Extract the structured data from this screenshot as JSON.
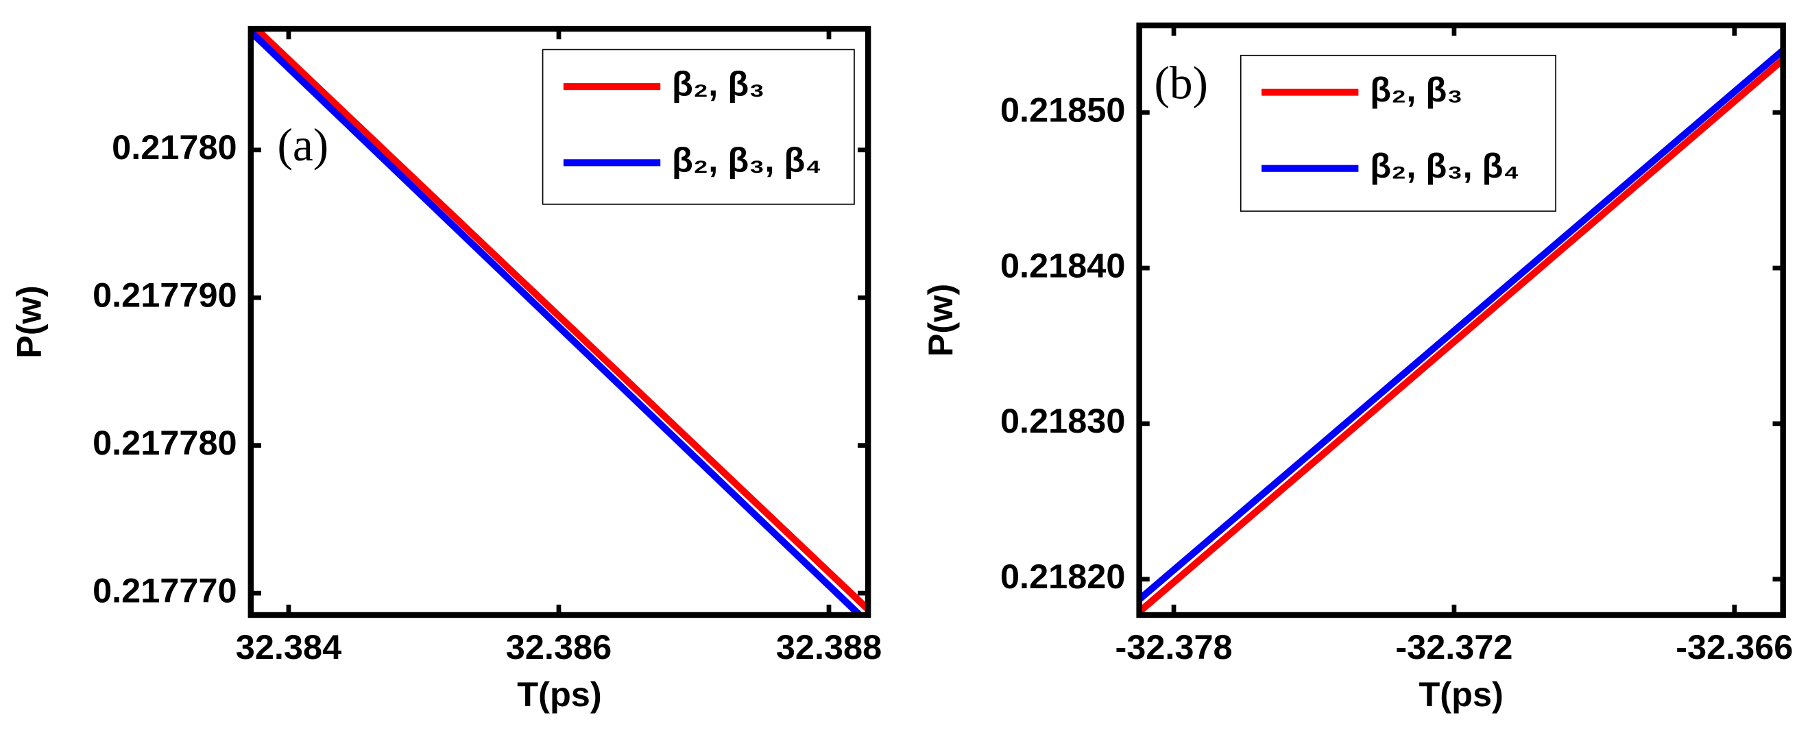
{
  "chart_data": [
    {
      "type": "line",
      "annotation": "(a)",
      "xlabel": "T(ps)",
      "ylabel": "P(w)",
      "xlim": [
        32.38372,
        32.38829
      ],
      "xticks": [
        32.384,
        32.386,
        32.388
      ],
      "ylim": [
        0.21776852,
        0.2178082
      ],
      "yticks": [
        {
          "value": 0.2178,
          "label": "0.21780"
        },
        {
          "value": 0.21779,
          "label": "0.217790"
        },
        {
          "value": 0.21778,
          "label": "0.217780"
        },
        {
          "value": 0.21777,
          "label": "0.217770"
        }
      ],
      "legend": "upper right",
      "series": [
        {
          "name": "β₂, β₃",
          "color": "#ff0000",
          "x": [
            32.38376,
            32.38829
          ],
          "values": [
            0.2178082,
            0.2177689
          ]
        },
        {
          "name": "β₂, β₃, β₄",
          "color": "#0000ff",
          "x": [
            32.38372,
            32.38823
          ],
          "values": [
            0.217808,
            0.2177685
          ]
        }
      ]
    },
    {
      "type": "line",
      "annotation": "(b)",
      "xlabel": "T(ps)",
      "ylabel": "P(w)",
      "xlim": [
        -32.37874,
        -32.36496
      ],
      "xticks": [
        -32.378,
        -32.372,
        -32.366
      ],
      "ylim": [
        0.218177,
        0.218556
      ],
      "yticks": [
        {
          "value": 0.2185,
          "label": "0.21850"
        },
        {
          "value": 0.2184,
          "label": "0.21840"
        },
        {
          "value": 0.2183,
          "label": "0.21830"
        },
        {
          "value": 0.2182,
          "label": "0.21820"
        }
      ],
      "legend": "upper right",
      "series": [
        {
          "name": "β₂, β₃",
          "color": "#ff0000",
          "x": [
            -32.37874,
            -32.36496
          ],
          "values": [
            0.218179,
            0.218534
          ]
        },
        {
          "name": "β₂, β₃, β₄",
          "color": "#0000ff",
          "x": [
            -32.37874,
            -32.36496
          ],
          "values": [
            0.218187,
            0.21854
          ]
        }
      ]
    }
  ]
}
